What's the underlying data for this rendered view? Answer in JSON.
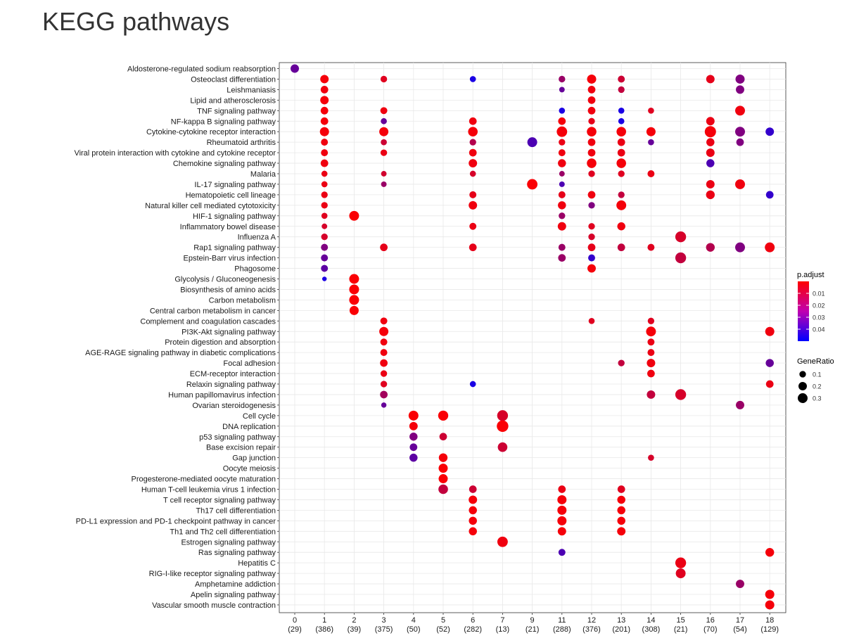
{
  "page": {
    "title": "KEGG pathways"
  },
  "chart_data": {
    "type": "scatter",
    "subtype": "dotplot",
    "title": "KEGG pathways",
    "xlabel": "",
    "ylabel": "",
    "grid": true,
    "x": [
      {
        "label": "0",
        "count": "(29)"
      },
      {
        "label": "1",
        "count": "(386)"
      },
      {
        "label": "2",
        "count": "(39)"
      },
      {
        "label": "3",
        "count": "(375)"
      },
      {
        "label": "4",
        "count": "(50)"
      },
      {
        "label": "5",
        "count": "(52)"
      },
      {
        "label": "6",
        "count": "(282)"
      },
      {
        "label": "7",
        "count": "(13)"
      },
      {
        "label": "9",
        "count": "(21)"
      },
      {
        "label": "11",
        "count": "(288)"
      },
      {
        "label": "12",
        "count": "(376)"
      },
      {
        "label": "13",
        "count": "(201)"
      },
      {
        "label": "14",
        "count": "(308)"
      },
      {
        "label": "15",
        "count": "(21)"
      },
      {
        "label": "16",
        "count": "(70)"
      },
      {
        "label": "17",
        "count": "(54)"
      },
      {
        "label": "18",
        "count": "(129)"
      }
    ],
    "y": [
      "Aldosterone-regulated sodium reabsorption",
      "Osteoclast differentiation",
      "Leishmaniasis",
      "Lipid and atherosclerosis",
      "TNF signaling pathway",
      "NF-kappa B signaling pathway",
      "Cytokine-cytokine receptor interaction",
      "Rheumatoid arthritis",
      "Viral protein interaction with cytokine and cytokine receptor",
      "Chemokine signaling pathway",
      "Malaria",
      "IL-17 signaling pathway",
      "Hematopoietic cell lineage",
      "Natural killer cell mediated cytotoxicity",
      "HIF-1 signaling pathway",
      "Inflammatory bowel disease",
      "Influenza A",
      "Rap1 signaling pathway",
      "Epstein-Barr virus infection",
      "Phagosome",
      "Glycolysis / Gluconeogenesis",
      "Biosynthesis of amino acids",
      "Carbon metabolism",
      "Central carbon metabolism in cancer",
      "Complement and coagulation cascades",
      "PI3K-Akt signaling pathway",
      "Protein digestion and absorption",
      "AGE-RAGE signaling pathway in diabetic complications",
      "Focal adhesion",
      "ECM-receptor interaction",
      "Relaxin signaling pathway",
      "Human papillomavirus infection",
      "Ovarian steroidogenesis",
      "Cell cycle",
      "DNA replication",
      "p53 signaling pathway",
      "Base excision repair",
      "Gap junction",
      "Oocyte meiosis",
      "Progesterone-mediated oocyte maturation",
      "Human T-cell leukemia virus 1 infection",
      "T cell receptor signaling pathway",
      "Th17 cell differentiation",
      "PD-L1 expression and PD-1 checkpoint pathway in cancer",
      "Th1 and Th2 cell differentiation",
      "Estrogen signaling pathway",
      "Ras signaling pathway",
      "Hepatitis C",
      "RIG-I-like receptor signaling pathway",
      "Amphetamine addiction",
      "Apelin signaling pathway",
      "Vascular smooth muscle contraction"
    ],
    "points_columns": [
      "cluster_index",
      "pathway_index",
      "GeneRatio",
      "p.adjust"
    ],
    "points": [
      [
        0,
        0,
        0.2,
        0.03
      ],
      [
        1,
        1,
        0.2,
        0.002
      ],
      [
        1,
        2,
        0.15,
        0.003
      ],
      [
        1,
        3,
        0.2,
        0.002
      ],
      [
        1,
        4,
        0.15,
        0.002
      ],
      [
        1,
        5,
        0.15,
        0.002
      ],
      [
        1,
        6,
        0.25,
        0.002
      ],
      [
        1,
        7,
        0.12,
        0.003
      ],
      [
        1,
        8,
        0.12,
        0.003
      ],
      [
        1,
        9,
        0.15,
        0.003
      ],
      [
        1,
        10,
        0.08,
        0.004
      ],
      [
        1,
        11,
        0.08,
        0.004
      ],
      [
        1,
        12,
        0.1,
        0.004
      ],
      [
        1,
        13,
        0.1,
        0.004
      ],
      [
        1,
        14,
        0.08,
        0.006
      ],
      [
        1,
        15,
        0.06,
        0.008
      ],
      [
        1,
        16,
        0.1,
        0.008
      ],
      [
        1,
        17,
        0.12,
        0.025
      ],
      [
        1,
        18,
        0.12,
        0.03
      ],
      [
        1,
        19,
        0.12,
        0.032
      ],
      [
        1,
        20,
        0.03,
        0.045
      ],
      [
        2,
        14,
        0.3,
        0.001
      ],
      [
        2,
        20,
        0.3,
        0.001
      ],
      [
        2,
        21,
        0.3,
        0.001
      ],
      [
        2,
        22,
        0.3,
        0.001
      ],
      [
        2,
        23,
        0.25,
        0.001
      ],
      [
        3,
        1,
        0.1,
        0.006
      ],
      [
        3,
        4,
        0.12,
        0.003
      ],
      [
        3,
        5,
        0.08,
        0.03
      ],
      [
        3,
        6,
        0.25,
        0.002
      ],
      [
        3,
        7,
        0.08,
        0.01
      ],
      [
        3,
        8,
        0.1,
        0.004
      ],
      [
        3,
        10,
        0.06,
        0.009
      ],
      [
        3,
        11,
        0.06,
        0.02
      ],
      [
        3,
        17,
        0.15,
        0.005
      ],
      [
        3,
        24,
        0.12,
        0.003
      ],
      [
        3,
        25,
        0.25,
        0.002
      ],
      [
        3,
        26,
        0.12,
        0.003
      ],
      [
        3,
        27,
        0.12,
        0.003
      ],
      [
        3,
        28,
        0.15,
        0.003
      ],
      [
        3,
        29,
        0.1,
        0.004
      ],
      [
        3,
        30,
        0.1,
        0.006
      ],
      [
        3,
        31,
        0.15,
        0.018
      ],
      [
        3,
        32,
        0.05,
        0.03
      ],
      [
        4,
        33,
        0.3,
        0.001
      ],
      [
        4,
        34,
        0.2,
        0.002
      ],
      [
        4,
        35,
        0.18,
        0.025
      ],
      [
        4,
        36,
        0.15,
        0.03
      ],
      [
        4,
        37,
        0.18,
        0.032
      ],
      [
        5,
        33,
        0.32,
        0.001
      ],
      [
        5,
        35,
        0.15,
        0.01
      ],
      [
        5,
        37,
        0.22,
        0.002
      ],
      [
        5,
        38,
        0.25,
        0.001
      ],
      [
        5,
        39,
        0.25,
        0.001
      ],
      [
        5,
        40,
        0.28,
        0.012
      ],
      [
        6,
        1,
        0.08,
        0.045
      ],
      [
        6,
        5,
        0.15,
        0.003
      ],
      [
        6,
        6,
        0.28,
        0.002
      ],
      [
        6,
        7,
        0.1,
        0.015
      ],
      [
        6,
        8,
        0.15,
        0.003
      ],
      [
        6,
        9,
        0.2,
        0.003
      ],
      [
        6,
        10,
        0.08,
        0.008
      ],
      [
        6,
        12,
        0.12,
        0.005
      ],
      [
        6,
        13,
        0.2,
        0.003
      ],
      [
        6,
        15,
        0.12,
        0.004
      ],
      [
        6,
        17,
        0.15,
        0.005
      ],
      [
        6,
        30,
        0.08,
        0.045
      ],
      [
        6,
        40,
        0.15,
        0.01
      ],
      [
        6,
        41,
        0.2,
        0.002
      ],
      [
        6,
        42,
        0.18,
        0.002
      ],
      [
        6,
        43,
        0.18,
        0.002
      ],
      [
        6,
        44,
        0.18,
        0.002
      ],
      [
        7,
        33,
        0.38,
        0.008
      ],
      [
        7,
        34,
        0.45,
        0.001
      ],
      [
        7,
        36,
        0.28,
        0.01
      ],
      [
        7,
        45,
        0.35,
        0.003
      ],
      [
        8,
        7,
        0.3,
        0.035
      ],
      [
        8,
        11,
        0.35,
        0.001
      ],
      [
        9,
        1,
        0.1,
        0.02
      ],
      [
        9,
        2,
        0.06,
        0.03
      ],
      [
        9,
        4,
        0.08,
        0.045
      ],
      [
        9,
        5,
        0.15,
        0.002
      ],
      [
        9,
        6,
        0.35,
        0.002
      ],
      [
        9,
        7,
        0.1,
        0.004
      ],
      [
        9,
        8,
        0.12,
        0.003
      ],
      [
        9,
        9,
        0.18,
        0.003
      ],
      [
        9,
        10,
        0.06,
        0.02
      ],
      [
        9,
        11,
        0.06,
        0.035
      ],
      [
        9,
        12,
        0.12,
        0.005
      ],
      [
        9,
        13,
        0.18,
        0.003
      ],
      [
        9,
        14,
        0.1,
        0.02
      ],
      [
        9,
        15,
        0.2,
        0.003
      ],
      [
        9,
        17,
        0.12,
        0.02
      ],
      [
        9,
        18,
        0.15,
        0.02
      ],
      [
        9,
        40,
        0.15,
        0.004
      ],
      [
        9,
        41,
        0.25,
        0.002
      ],
      [
        9,
        42,
        0.25,
        0.002
      ],
      [
        9,
        43,
        0.25,
        0.002
      ],
      [
        9,
        44,
        0.2,
        0.002
      ],
      [
        9,
        46,
        0.12,
        0.035
      ],
      [
        10,
        1,
        0.25,
        0.002
      ],
      [
        10,
        2,
        0.15,
        0.003
      ],
      [
        10,
        3,
        0.15,
        0.003
      ],
      [
        10,
        4,
        0.15,
        0.003
      ],
      [
        10,
        5,
        0.1,
        0.005
      ],
      [
        10,
        6,
        0.28,
        0.002
      ],
      [
        10,
        7,
        0.15,
        0.003
      ],
      [
        10,
        8,
        0.15,
        0.003
      ],
      [
        10,
        9,
        0.28,
        0.002
      ],
      [
        10,
        10,
        0.1,
        0.006
      ],
      [
        10,
        12,
        0.15,
        0.003
      ],
      [
        10,
        13,
        0.1,
        0.025
      ],
      [
        10,
        15,
        0.1,
        0.006
      ],
      [
        10,
        16,
        0.1,
        0.008
      ],
      [
        10,
        17,
        0.15,
        0.005
      ],
      [
        10,
        18,
        0.12,
        0.04
      ],
      [
        10,
        19,
        0.2,
        0.002
      ],
      [
        10,
        24,
        0.08,
        0.006
      ],
      [
        11,
        1,
        0.12,
        0.01
      ],
      [
        11,
        2,
        0.1,
        0.012
      ],
      [
        11,
        4,
        0.08,
        0.045
      ],
      [
        11,
        5,
        0.08,
        0.045
      ],
      [
        11,
        6,
        0.28,
        0.002
      ],
      [
        11,
        7,
        0.15,
        0.004
      ],
      [
        11,
        8,
        0.15,
        0.004
      ],
      [
        11,
        9,
        0.28,
        0.002
      ],
      [
        11,
        10,
        0.1,
        0.006
      ],
      [
        11,
        12,
        0.1,
        0.012
      ],
      [
        11,
        13,
        0.3,
        0.002
      ],
      [
        11,
        15,
        0.18,
        0.003
      ],
      [
        11,
        17,
        0.15,
        0.012
      ],
      [
        11,
        28,
        0.1,
        0.012
      ],
      [
        11,
        40,
        0.15,
        0.006
      ],
      [
        11,
        41,
        0.18,
        0.002
      ],
      [
        11,
        42,
        0.18,
        0.002
      ],
      [
        11,
        43,
        0.18,
        0.002
      ],
      [
        11,
        44,
        0.2,
        0.002
      ],
      [
        12,
        4,
        0.08,
        0.006
      ],
      [
        12,
        6,
        0.25,
        0.002
      ],
      [
        12,
        7,
        0.08,
        0.03
      ],
      [
        12,
        10,
        0.12,
        0.004
      ],
      [
        12,
        17,
        0.12,
        0.006
      ],
      [
        12,
        24,
        0.1,
        0.006
      ],
      [
        12,
        25,
        0.3,
        0.002
      ],
      [
        12,
        26,
        0.12,
        0.004
      ],
      [
        12,
        27,
        0.12,
        0.004
      ],
      [
        12,
        28,
        0.2,
        0.003
      ],
      [
        12,
        29,
        0.15,
        0.003
      ],
      [
        12,
        31,
        0.2,
        0.012
      ],
      [
        12,
        37,
        0.08,
        0.008
      ],
      [
        13,
        16,
        0.38,
        0.008
      ],
      [
        13,
        18,
        0.38,
        0.012
      ],
      [
        13,
        31,
        0.38,
        0.008
      ],
      [
        13,
        47,
        0.38,
        0.004
      ],
      [
        13,
        48,
        0.3,
        0.006
      ],
      [
        14,
        1,
        0.2,
        0.005
      ],
      [
        14,
        5,
        0.2,
        0.004
      ],
      [
        14,
        6,
        0.42,
        0.002
      ],
      [
        14,
        7,
        0.18,
        0.004
      ],
      [
        14,
        8,
        0.2,
        0.004
      ],
      [
        14,
        9,
        0.18,
        0.035
      ],
      [
        14,
        11,
        0.2,
        0.004
      ],
      [
        14,
        12,
        0.22,
        0.004
      ],
      [
        14,
        17,
        0.22,
        0.015
      ],
      [
        15,
        1,
        0.25,
        0.025
      ],
      [
        15,
        2,
        0.2,
        0.025
      ],
      [
        15,
        4,
        0.3,
        0.003
      ],
      [
        15,
        6,
        0.3,
        0.025
      ],
      [
        15,
        7,
        0.15,
        0.025
      ],
      [
        15,
        11,
        0.3,
        0.003
      ],
      [
        15,
        17,
        0.3,
        0.025
      ],
      [
        15,
        32,
        0.2,
        0.02
      ],
      [
        15,
        49,
        0.2,
        0.02
      ],
      [
        16,
        6,
        0.2,
        0.04
      ],
      [
        16,
        12,
        0.15,
        0.04
      ],
      [
        16,
        17,
        0.3,
        0.003
      ],
      [
        16,
        25,
        0.25,
        0.003
      ],
      [
        16,
        28,
        0.18,
        0.03
      ],
      [
        16,
        30,
        0.15,
        0.004
      ],
      [
        16,
        46,
        0.22,
        0.002
      ],
      [
        16,
        50,
        0.25,
        0.002
      ],
      [
        16,
        51,
        0.25,
        0.002
      ]
    ],
    "legend": {
      "color": {
        "title": "p.adjust",
        "ticks": [
          "0.01",
          "0.02",
          "0.03",
          "0.04"
        ],
        "tick_values": [
          0.01,
          0.02,
          0.03,
          0.04
        ],
        "range": [
          0,
          0.05
        ],
        "low_color": "#ff0000",
        "high_color": "#0000ff"
      },
      "size": {
        "title": "GeneRatio",
        "ticks": [
          "0.1",
          "0.2",
          "0.3"
        ],
        "tick_values": [
          0.1,
          0.2,
          0.3
        ]
      }
    }
  }
}
